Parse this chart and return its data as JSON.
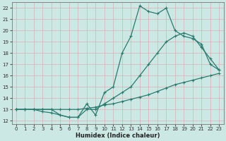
{
  "xlabel": "Humidex (Indice chaleur)",
  "bg_color": "#cce8e4",
  "grid_color": "#b0d8d2",
  "line_color": "#2a7a6e",
  "xlim": [
    -0.5,
    23.5
  ],
  "ylim": [
    11.7,
    22.5
  ],
  "xticks": [
    0,
    1,
    2,
    3,
    4,
    5,
    6,
    7,
    8,
    9,
    10,
    11,
    12,
    13,
    14,
    15,
    16,
    17,
    18,
    19,
    20,
    21,
    22,
    23
  ],
  "yticks": [
    12,
    13,
    14,
    15,
    16,
    17,
    18,
    19,
    20,
    21,
    22
  ],
  "curve1_x": [
    0,
    1,
    2,
    3,
    4,
    5,
    6,
    7,
    8,
    9,
    10,
    11,
    12,
    13,
    14,
    15,
    16,
    17,
    18,
    19,
    20,
    21,
    22,
    23
  ],
  "curve1_y": [
    13.0,
    13.0,
    13.0,
    13.0,
    13.0,
    12.5,
    12.3,
    12.3,
    13.5,
    12.5,
    14.5,
    15.0,
    18.0,
    19.5,
    22.2,
    21.7,
    21.5,
    22.0,
    20.0,
    19.5,
    19.3,
    18.8,
    17.0,
    16.5
  ],
  "curve2_x": [
    0,
    1,
    2,
    3,
    4,
    5,
    6,
    7,
    8,
    9,
    10,
    11,
    12,
    13,
    14,
    15,
    16,
    17,
    18,
    19,
    20,
    21,
    22,
    23
  ],
  "curve2_y": [
    13.0,
    13.0,
    13.0,
    12.8,
    12.7,
    12.5,
    12.3,
    12.3,
    13.0,
    13.0,
    13.5,
    14.0,
    14.5,
    15.0,
    16.0,
    17.0,
    18.0,
    19.0,
    19.5,
    19.8,
    19.5,
    18.5,
    17.5,
    16.5
  ],
  "curve3_x": [
    0,
    1,
    2,
    3,
    4,
    5,
    6,
    7,
    8,
    9,
    10,
    11,
    12,
    13,
    14,
    15,
    16,
    17,
    18,
    19,
    20,
    21,
    22,
    23
  ],
  "curve3_y": [
    13.0,
    13.0,
    13.0,
    13.0,
    13.0,
    13.0,
    13.0,
    13.0,
    13.1,
    13.2,
    13.4,
    13.5,
    13.7,
    13.9,
    14.1,
    14.3,
    14.6,
    14.9,
    15.2,
    15.4,
    15.6,
    15.8,
    16.0,
    16.2
  ]
}
